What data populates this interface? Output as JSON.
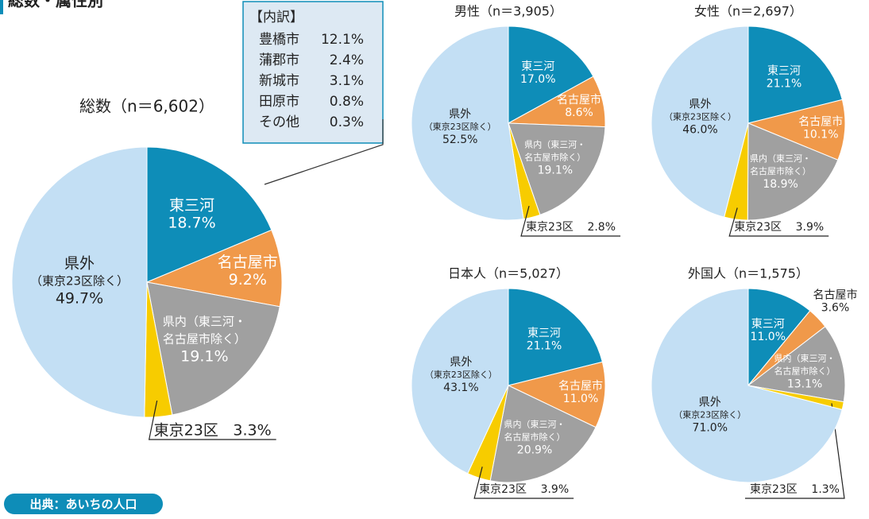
{
  "header": {
    "title": "総数・属性別"
  },
  "breakdown": {
    "title": "【内訳】",
    "rows": [
      [
        "豊橋市",
        "12.1%"
      ],
      [
        "蒲郡市",
        "2.4%"
      ],
      [
        "新城市",
        "3.1%"
      ],
      [
        "田原市",
        "0.8%"
      ],
      [
        "その他",
        "0.3%"
      ]
    ]
  },
  "footer": {
    "source": "出典：あいちの人口"
  },
  "chart_data": [
    {
      "type": "pie",
      "title": "総数（n＝6,602）",
      "categories": [
        [
          "東三河"
        ],
        [
          "名古屋市"
        ],
        [
          "県内（東三河・",
          "名古屋市除く）"
        ],
        [
          "東京23区"
        ],
        [
          "県外",
          "（東京23区除く）"
        ]
      ],
      "values": [
        18.7,
        9.2,
        19.1,
        3.3,
        49.7
      ],
      "value_labels": [
        "18.7%",
        "9.2%",
        "19.1%",
        "3.3%",
        "49.7%"
      ],
      "colors": [
        "#0e8db8",
        "#f0994a",
        "#a0a0a0",
        "#f7cc00",
        "#c3dff4"
      ]
    },
    {
      "type": "pie",
      "title": "男性（n＝3,905）",
      "categories": [
        [
          "東三河"
        ],
        [
          "名古屋市"
        ],
        [
          "県内（東三河・",
          "名古屋市除く）"
        ],
        [
          "東京23区"
        ],
        [
          "県外",
          "（東京23区除く）"
        ]
      ],
      "values": [
        17.0,
        8.6,
        19.1,
        2.8,
        52.5
      ],
      "value_labels": [
        "17.0%",
        "8.6%",
        "19.1%",
        "2.8%",
        "52.5%"
      ],
      "colors": [
        "#0e8db8",
        "#f0994a",
        "#a0a0a0",
        "#f7cc00",
        "#c3dff4"
      ]
    },
    {
      "type": "pie",
      "title": "女性（n＝2,697）",
      "categories": [
        [
          "東三河"
        ],
        [
          "名古屋市"
        ],
        [
          "県内（東三河・",
          "名古屋市除く）"
        ],
        [
          "東京23区"
        ],
        [
          "県外",
          "（東京23区除く）"
        ]
      ],
      "values": [
        21.1,
        10.1,
        18.9,
        3.9,
        46.0
      ],
      "value_labels": [
        "21.1%",
        "10.1%",
        "18.9%",
        "3.9%",
        "46.0%"
      ],
      "colors": [
        "#0e8db8",
        "#f0994a",
        "#a0a0a0",
        "#f7cc00",
        "#c3dff4"
      ]
    },
    {
      "type": "pie",
      "title": "日本人（n＝5,027）",
      "categories": [
        [
          "東三河"
        ],
        [
          "名古屋市"
        ],
        [
          "県内（東三河・",
          "名古屋市除く）"
        ],
        [
          "東京23区"
        ],
        [
          "県外",
          "（東京23区除く）"
        ]
      ],
      "values": [
        21.1,
        11.0,
        20.9,
        3.9,
        43.1
      ],
      "value_labels": [
        "21.1%",
        "11.0%",
        "20.9%",
        "3.9%",
        "43.1%"
      ],
      "colors": [
        "#0e8db8",
        "#f0994a",
        "#a0a0a0",
        "#f7cc00",
        "#c3dff4"
      ]
    },
    {
      "type": "pie",
      "title": "外国人（n＝1,575）",
      "categories": [
        [
          "東三河"
        ],
        [
          "名古屋市"
        ],
        [
          "県内（東三河・",
          "名古屋市除く）"
        ],
        [
          "東京23区"
        ],
        [
          "県外",
          "（東京23区除く）"
        ]
      ],
      "values": [
        11.0,
        3.6,
        13.1,
        1.3,
        71.0
      ],
      "value_labels": [
        "11.0%",
        "3.6%",
        "13.1%",
        "1.3%",
        "71.0%"
      ],
      "colors": [
        "#0e8db8",
        "#f0994a",
        "#a0a0a0",
        "#f7cc00",
        "#c3dff4"
      ]
    }
  ]
}
